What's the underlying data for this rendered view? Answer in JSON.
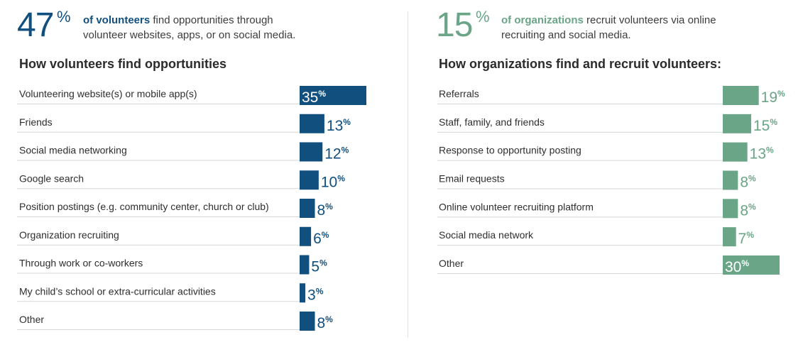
{
  "left": {
    "headline": {
      "stat": "47",
      "stat_unit": "%",
      "bold_text": "of volunteers",
      "text": " find opportunities through volunteer websites, apps, or on social media."
    },
    "colors": {
      "accent": "#114f7e"
    }
  },
  "right": {
    "headline": {
      "stat": "15",
      "stat_unit": "%",
      "bold_text": "of organizations",
      "text": " recruit volunteers via online recruiting and social media."
    },
    "colors": {
      "accent": "#6aa587"
    }
  },
  "chart_data": [
    {
      "type": "bar",
      "orientation": "horizontal",
      "title": "How volunteers find opportunities",
      "categories": [
        "Volunteering website(s) or mobile app(s)",
        "Friends",
        "Social media networking",
        "Google search",
        "Position postings (e.g. community center, church or club)",
        "Organization recruiting",
        "Through work or co-workers",
        "My child’s school or extra-curricular activities",
        "Other"
      ],
      "values": [
        35,
        13,
        12,
        10,
        8,
        6,
        5,
        3,
        8
      ],
      "unit": "%",
      "xlim": [
        0,
        35
      ],
      "color": "#114f7e",
      "grid": false
    },
    {
      "type": "bar",
      "orientation": "horizontal",
      "title": "How organizations find and recruit volunteers:",
      "categories": [
        "Referrals",
        "Staff, family, and friends",
        "Response to opportunity posting",
        "Email requests",
        "Online volunteer recruiting platform",
        "Social media network",
        "Other"
      ],
      "values": [
        19,
        15,
        13,
        8,
        8,
        7,
        30
      ],
      "unit": "%",
      "xlim": [
        0,
        30
      ],
      "color": "#6aa587",
      "grid": false
    }
  ]
}
